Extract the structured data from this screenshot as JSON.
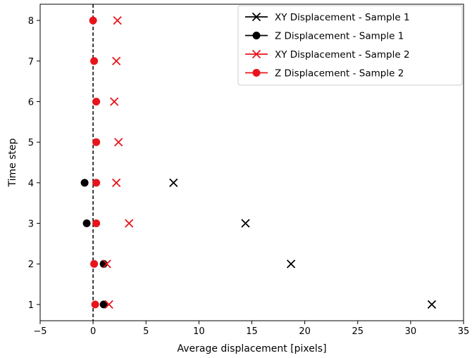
{
  "chart_data": {
    "type": "scatter",
    "title": "",
    "xlabel": "Average displacement [pixels]",
    "ylabel": "Time step",
    "xlim": [
      -5,
      35
    ],
    "ylim": [
      0.6,
      8.4
    ],
    "xticks": [
      -5,
      0,
      5,
      10,
      15,
      20,
      25,
      30,
      35
    ],
    "yticks": [
      1,
      2,
      3,
      4,
      5,
      6,
      7,
      8
    ],
    "reference_line": {
      "x": 0,
      "style": "dashed",
      "color": "#000000"
    },
    "grid": false,
    "legend_position": "top-right",
    "series": [
      {
        "name": "XY Displacement - Sample 1",
        "marker": "x",
        "color": "#000000",
        "points": [
          [
            32.0,
            1
          ],
          [
            18.7,
            2
          ],
          [
            14.4,
            3
          ],
          [
            7.6,
            4
          ]
        ]
      },
      {
        "name": "Z Displacement - Sample 1",
        "marker": "o",
        "color": "#000000",
        "points": [
          [
            1.0,
            1
          ],
          [
            1.0,
            2
          ],
          [
            -0.6,
            3
          ],
          [
            -0.8,
            4
          ]
        ]
      },
      {
        "name": "XY Displacement - Sample 2",
        "marker": "x",
        "color": "#e8141b",
        "points": [
          [
            1.5,
            1
          ],
          [
            1.3,
            2
          ],
          [
            3.4,
            3
          ],
          [
            2.2,
            4
          ],
          [
            2.4,
            5
          ],
          [
            2.0,
            6
          ],
          [
            2.2,
            7
          ],
          [
            2.3,
            8
          ]
        ]
      },
      {
        "name": "Z Displacement - Sample 2",
        "marker": "o",
        "color": "#e8141b",
        "points": [
          [
            0.2,
            1
          ],
          [
            0.1,
            2
          ],
          [
            0.3,
            3
          ],
          [
            0.3,
            4
          ],
          [
            0.3,
            5
          ],
          [
            0.3,
            6
          ],
          [
            0.1,
            7
          ],
          [
            0.0,
            8
          ]
        ]
      }
    ]
  }
}
